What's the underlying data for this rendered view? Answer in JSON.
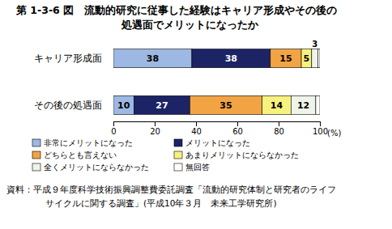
{
  "chart_data": {
    "type": "bar",
    "orientation": "horizontal",
    "stacked": true,
    "data_labels": true,
    "title": "第 1-3-6 図　流動的研究に従事した経験はキャリア形成やその後の\n処遇面でメリットになったか",
    "categories": [
      "キャリア形成面",
      "その後の処遇面"
    ],
    "series": [
      {
        "name": "非常にメリットになった",
        "color": "#9db8e2",
        "values": [
          38,
          10
        ]
      },
      {
        "name": "メリットになった",
        "color": "#1c2466",
        "values": [
          38,
          27
        ]
      },
      {
        "name": "どちらとも言えない",
        "color": "#f2a444",
        "values": [
          15,
          35
        ]
      },
      {
        "name": "あまりメリットにならなかった",
        "color": "#f7f27e",
        "values": [
          5,
          14
        ]
      },
      {
        "name": "全くメリットにならなかった",
        "color": "#eef4ea",
        "values": [
          3,
          12
        ]
      },
      {
        "name": "無回答",
        "color": "#ffffff",
        "values": [
          1,
          2
        ],
        "data_labels": false
      }
    ],
    "xlim": [
      0,
      100
    ],
    "xticks": [
      0,
      20,
      40,
      60,
      80,
      100
    ],
    "xlabel": "(%)",
    "grid": false,
    "source": "資料：平成９年度科学技術振興調整費委託調査「流動的研究体制と研究者のライフ\nサイクルに関する調査」(平成10年３月　未来工学研究所)"
  }
}
